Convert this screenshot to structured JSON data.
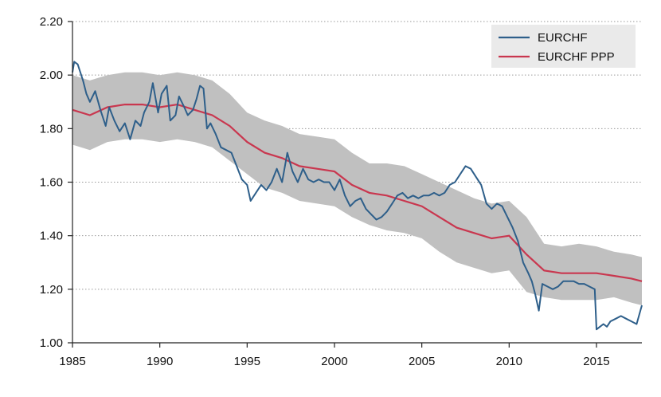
{
  "chart_data": {
    "type": "line",
    "title": "",
    "xlabel": "",
    "ylabel": "",
    "xlim": [
      1985,
      2017.6
    ],
    "ylim": [
      1.0,
      2.2
    ],
    "x_ticks": [
      1985,
      1990,
      1995,
      2000,
      2005,
      2010,
      2015
    ],
    "x_tick_labels": [
      "1985",
      "1990",
      "1995",
      "2000",
      "2005",
      "2010",
      "2015"
    ],
    "y_ticks": [
      1.0,
      1.2,
      1.4,
      1.6,
      1.8,
      2.0,
      2.2
    ],
    "y_tick_labels": [
      "1.00",
      "1.20",
      "1.40",
      "1.60",
      "1.80",
      "2.00",
      "2.20"
    ],
    "grid": "horizontal-dotted",
    "legend_position": "top-right",
    "colors": {
      "EURCHF": "#2e5f8a",
      "EURCHF PPP": "#c9374f",
      "band": "#c0c0c0"
    },
    "band": {
      "x": [
        1985,
        1986,
        1987,
        1988,
        1989,
        1990,
        1991,
        1992,
        1993,
        1994,
        1995,
        1996,
        1997,
        1998,
        1999,
        2000,
        2001,
        2002,
        2003,
        2004,
        2005,
        2006,
        2007,
        2008,
        2009,
        2010,
        2011,
        2012,
        2013,
        2014,
        2015,
        2016,
        2017,
        2017.6
      ],
      "lower": [
        1.74,
        1.72,
        1.75,
        1.76,
        1.76,
        1.75,
        1.76,
        1.75,
        1.73,
        1.68,
        1.63,
        1.58,
        1.56,
        1.53,
        1.52,
        1.51,
        1.47,
        1.44,
        1.42,
        1.41,
        1.39,
        1.34,
        1.3,
        1.28,
        1.26,
        1.27,
        1.19,
        1.17,
        1.16,
        1.16,
        1.16,
        1.17,
        1.15,
        1.14
      ],
      "upper": [
        2.0,
        1.98,
        2.0,
        2.01,
        2.01,
        2.0,
        2.01,
        2.0,
        1.98,
        1.93,
        1.86,
        1.83,
        1.81,
        1.78,
        1.77,
        1.76,
        1.71,
        1.67,
        1.67,
        1.66,
        1.63,
        1.6,
        1.57,
        1.54,
        1.52,
        1.53,
        1.47,
        1.37,
        1.36,
        1.37,
        1.36,
        1.34,
        1.33,
        1.32
      ]
    },
    "series": [
      {
        "name": "EURCHF",
        "x": [
          1985,
          1985.1,
          1985.3,
          1985.6,
          1985.8,
          1986.0,
          1986.3,
          1986.6,
          1986.9,
          1987.1,
          1987.4,
          1987.7,
          1988.0,
          1988.3,
          1988.6,
          1988.9,
          1989.1,
          1989.4,
          1989.6,
          1989.9,
          1990.1,
          1990.4,
          1990.6,
          1990.9,
          1991.1,
          1991.4,
          1991.6,
          1991.9,
          1992.1,
          1992.3,
          1992.5,
          1992.7,
          1992.9,
          1993.2,
          1993.5,
          1993.8,
          1994.1,
          1994.4,
          1994.7,
          1995.0,
          1995.2,
          1995.5,
          1995.8,
          1996.1,
          1996.4,
          1996.7,
          1997.0,
          1997.3,
          1997.6,
          1997.9,
          1998.2,
          1998.5,
          1998.8,
          1999.1,
          1999.4,
          1999.7,
          2000.0,
          2000.3,
          2000.6,
          2000.9,
          2001.2,
          2001.5,
          2001.8,
          2002.1,
          2002.4,
          2002.7,
          2003.0,
          2003.3,
          2003.6,
          2003.9,
          2004.2,
          2004.5,
          2004.8,
          2005.1,
          2005.4,
          2005.7,
          2006.0,
          2006.3,
          2006.6,
          2006.9,
          2007.2,
          2007.5,
          2007.8,
          2008.1,
          2008.4,
          2008.7,
          2009.0,
          2009.3,
          2009.6,
          2009.9,
          2010.2,
          2010.5,
          2010.8,
          2011.1,
          2011.3,
          2011.5,
          2011.7,
          2011.9,
          2012.2,
          2012.5,
          2012.8,
          2013.1,
          2013.4,
          2013.7,
          2014.0,
          2014.3,
          2014.6,
          2014.9,
          2015.0,
          2015.2,
          2015.4,
          2015.6,
          2015.8,
          2016.1,
          2016.4,
          2016.7,
          2017.0,
          2017.3,
          2017.6
        ],
        "values": [
          2.01,
          2.05,
          2.04,
          1.98,
          1.93,
          1.9,
          1.94,
          1.87,
          1.81,
          1.88,
          1.83,
          1.79,
          1.82,
          1.76,
          1.83,
          1.81,
          1.86,
          1.9,
          1.97,
          1.86,
          1.93,
          1.96,
          1.83,
          1.85,
          1.92,
          1.88,
          1.85,
          1.87,
          1.91,
          1.96,
          1.95,
          1.8,
          1.82,
          1.78,
          1.73,
          1.72,
          1.71,
          1.66,
          1.61,
          1.59,
          1.53,
          1.56,
          1.59,
          1.57,
          1.6,
          1.65,
          1.6,
          1.71,
          1.64,
          1.6,
          1.65,
          1.61,
          1.6,
          1.61,
          1.6,
          1.6,
          1.57,
          1.61,
          1.55,
          1.51,
          1.53,
          1.54,
          1.5,
          1.48,
          1.46,
          1.47,
          1.49,
          1.52,
          1.55,
          1.56,
          1.54,
          1.55,
          1.54,
          1.55,
          1.55,
          1.56,
          1.55,
          1.56,
          1.59,
          1.6,
          1.63,
          1.66,
          1.65,
          1.62,
          1.59,
          1.52,
          1.5,
          1.52,
          1.51,
          1.47,
          1.43,
          1.38,
          1.3,
          1.26,
          1.23,
          1.18,
          1.12,
          1.22,
          1.21,
          1.2,
          1.21,
          1.23,
          1.23,
          1.23,
          1.22,
          1.22,
          1.21,
          1.2,
          1.05,
          1.06,
          1.07,
          1.06,
          1.08,
          1.09,
          1.1,
          1.09,
          1.08,
          1.07,
          1.14
        ]
      },
      {
        "name": "EURCHF PPP",
        "x": [
          1985,
          1986,
          1987,
          1988,
          1989,
          1990,
          1991,
          1992,
          1993,
          1994,
          1995,
          1996,
          1997,
          1998,
          1999,
          2000,
          2001,
          2002,
          2003,
          2004,
          2005,
          2006,
          2007,
          2008,
          2009,
          2010,
          2011,
          2012,
          2013,
          2014,
          2015,
          2016,
          2017,
          2017.6
        ],
        "values": [
          1.87,
          1.85,
          1.88,
          1.89,
          1.89,
          1.88,
          1.89,
          1.87,
          1.85,
          1.81,
          1.75,
          1.71,
          1.69,
          1.66,
          1.65,
          1.64,
          1.59,
          1.56,
          1.55,
          1.53,
          1.51,
          1.47,
          1.43,
          1.41,
          1.39,
          1.4,
          1.33,
          1.27,
          1.26,
          1.26,
          1.26,
          1.25,
          1.24,
          1.23
        ]
      }
    ]
  }
}
